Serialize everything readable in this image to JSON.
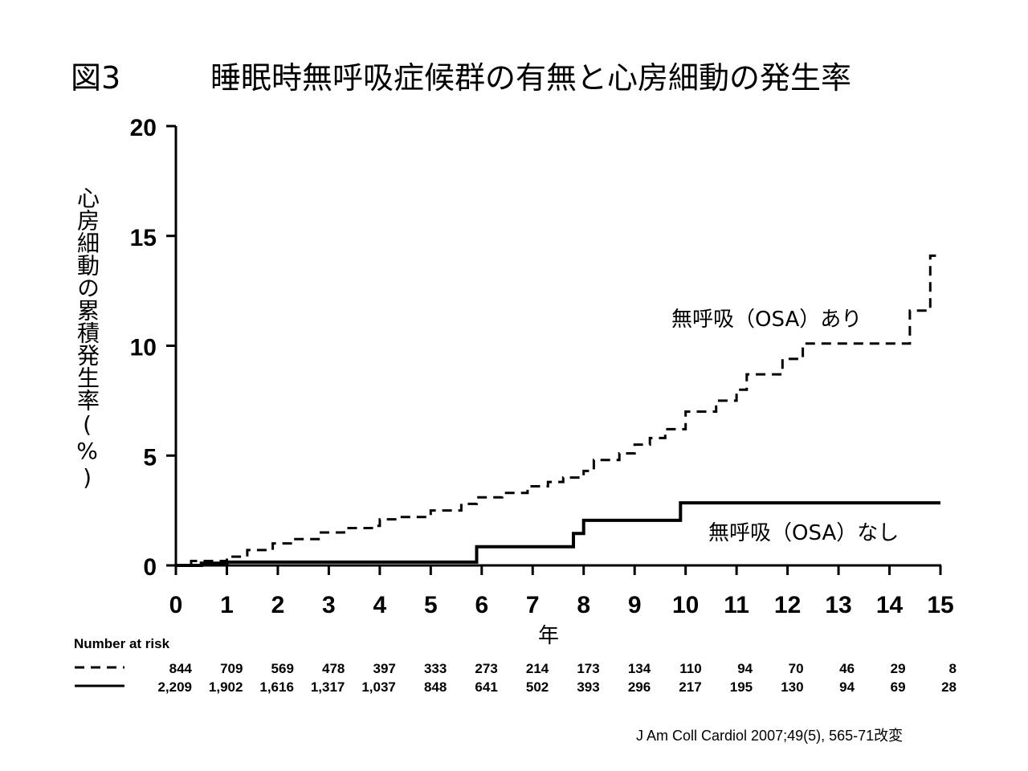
{
  "figure_label": "図3",
  "title": "睡眠時無呼吸症候群の有無と心房細動の発生率",
  "source": "J Am Coll Cardiol 2007;49(5), 565-71改変",
  "chart_data": {
    "type": "line",
    "step": true,
    "ylabel": "心房細動の累積発生率(%)",
    "xlabel": "年",
    "xlim": [
      0,
      15
    ],
    "ylim": [
      0,
      20
    ],
    "xticks": [
      "0",
      "1",
      "2",
      "3",
      "4",
      "5",
      "6",
      "7",
      "8",
      "9",
      "10",
      "11",
      "12",
      "13",
      "14",
      "15"
    ],
    "yticks": [
      "0",
      "5",
      "10",
      "15",
      "20"
    ],
    "series": [
      {
        "name": "無呼吸（OSA）あり",
        "style": "dashed",
        "points": [
          [
            0,
            0
          ],
          [
            0.3,
            0.2
          ],
          [
            1.0,
            0.4
          ],
          [
            1.4,
            0.7
          ],
          [
            1.9,
            1.0
          ],
          [
            2.3,
            1.2
          ],
          [
            2.8,
            1.5
          ],
          [
            3.3,
            1.7
          ],
          [
            3.9,
            1.8
          ],
          [
            4.0,
            2.1
          ],
          [
            4.4,
            2.2
          ],
          [
            5.0,
            2.5
          ],
          [
            5.6,
            2.8
          ],
          [
            5.9,
            3.1
          ],
          [
            6.4,
            3.3
          ],
          [
            6.9,
            3.6
          ],
          [
            7.3,
            3.8
          ],
          [
            7.6,
            4.0
          ],
          [
            8.0,
            4.3
          ],
          [
            8.2,
            4.8
          ],
          [
            8.7,
            5.1
          ],
          [
            9.0,
            5.5
          ],
          [
            9.3,
            5.8
          ],
          [
            9.6,
            6.2
          ],
          [
            10.0,
            7.0
          ],
          [
            10.6,
            7.5
          ],
          [
            11.0,
            8.0
          ],
          [
            11.2,
            8.7
          ],
          [
            11.9,
            9.4
          ],
          [
            12.3,
            10.1
          ],
          [
            14.4,
            11.6
          ],
          [
            14.8,
            14.1
          ],
          [
            15.0,
            14.1
          ]
        ]
      },
      {
        "name": "無呼吸（OSA）なし",
        "style": "solid",
        "points": [
          [
            0,
            0
          ],
          [
            0.5,
            0.1
          ],
          [
            1.0,
            0.15
          ],
          [
            5.9,
            0.85
          ],
          [
            7.8,
            1.45
          ],
          [
            8.0,
            2.05
          ],
          [
            9.9,
            2.85
          ],
          [
            15.0,
            2.85
          ]
        ]
      }
    ],
    "annotations": [
      "無呼吸（OSA）あり",
      "無呼吸（OSA）なし"
    ],
    "number_at_risk": {
      "title": "Number at risk",
      "rows": [
        {
          "style": "dashed",
          "values": [
            "844",
            "709",
            "569",
            "478",
            "397",
            "333",
            "273",
            "214",
            "173",
            "134",
            "110",
            "94",
            "70",
            "46",
            "29",
            "8"
          ]
        },
        {
          "style": "solid",
          "values": [
            "2,209",
            "1,902",
            "1,616",
            "1,317",
            "1,037",
            "848",
            "641",
            "502",
            "393",
            "296",
            "217",
            "195",
            "130",
            "94",
            "69",
            "28"
          ]
        }
      ]
    }
  }
}
